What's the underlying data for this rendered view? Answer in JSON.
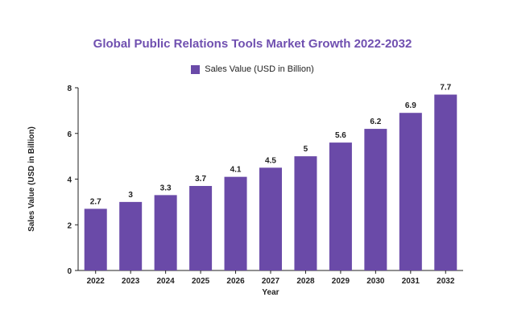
{
  "chart_data": {
    "type": "bar",
    "title": "Global Public Relations Tools Market Growth 2022-2032",
    "xlabel": "Year",
    "ylabel": "Sales Value (USD in Billion)",
    "categories": [
      "2022",
      "2023",
      "2024",
      "2025",
      "2026",
      "2027",
      "2028",
      "2029",
      "2030",
      "2031",
      "2032"
    ],
    "series": [
      {
        "name": "Sales Value (USD in Billion)",
        "values": [
          2.7,
          3,
          3.3,
          3.7,
          4.1,
          4.5,
          5,
          5.6,
          6.2,
          6.9,
          7.7
        ]
      }
    ],
    "data_labels": [
      "2.7",
      "3",
      "3.3",
      "3.7",
      "4.1",
      "4.5",
      "5",
      "5.6",
      "6.2",
      "6.9",
      "7.7"
    ],
    "yticks": [
      "0",
      "2",
      "4",
      "6",
      "8"
    ],
    "ylim": [
      0,
      8
    ],
    "grid": false,
    "legend_position": "top-center",
    "colors": {
      "bar": "#6a4aa8",
      "title": "#7050b0",
      "axis": "#222222"
    }
  }
}
